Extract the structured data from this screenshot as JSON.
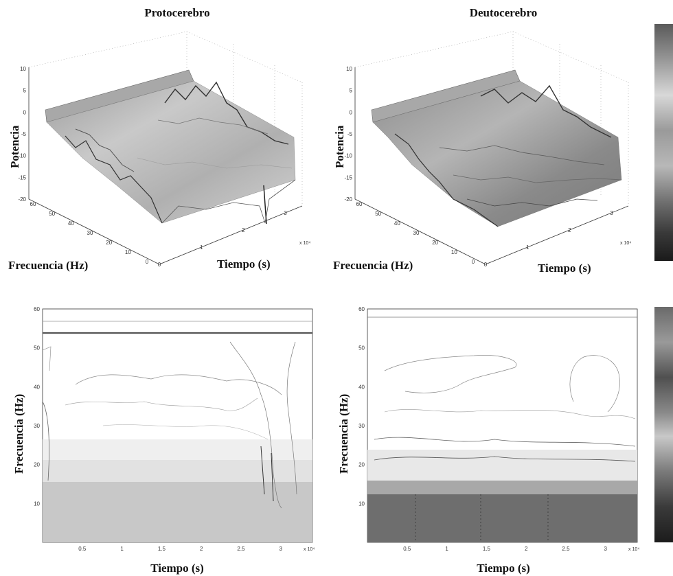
{
  "figure": {
    "panels": [
      {
        "id": "proto-3d",
        "title": "Protocerebro",
        "type": "surface",
        "xlabel": "Tiempo (s)",
        "ylabel": "Frecuencia (Hz)",
        "zlabel": "Potencia",
        "z_ticks": [
          "10",
          "5",
          "0",
          "-5",
          "-10",
          "-15",
          "-20"
        ],
        "y_ticks": [
          "60",
          "50",
          "40",
          "30",
          "20",
          "10",
          "0"
        ],
        "x_ticks": [
          "0",
          "1",
          "2",
          "3"
        ],
        "x_scale": "x 10⁴"
      },
      {
        "id": "deuto-3d",
        "title": "Deutocerebro",
        "type": "surface",
        "xlabel": "Tiempo (s)",
        "ylabel": "Frecuencia (Hz)",
        "zlabel": "Potencia",
        "z_ticks": [
          "10",
          "5",
          "0",
          "-5",
          "-10",
          "-15",
          "-20"
        ],
        "y_ticks": [
          "60",
          "50",
          "40",
          "30",
          "20",
          "10",
          "0"
        ],
        "x_ticks": [
          "0",
          "1",
          "2",
          "3"
        ],
        "x_scale": "x 10⁴"
      },
      {
        "id": "proto-contour",
        "type": "contour",
        "xlabel": "Tiempo (s)",
        "ylabel": "Frecuencia (Hz)",
        "x_ticks": [
          "0.5",
          "1",
          "1.5",
          "2",
          "2.5",
          "3"
        ],
        "y_ticks": [
          "60",
          "50",
          "40",
          "30",
          "20",
          "10"
        ],
        "x_scale": "x 10⁴"
      },
      {
        "id": "deuto-contour",
        "type": "contour",
        "xlabel": "Tiempo (s)",
        "ylabel": "Frecuencia (Hz)",
        "x_ticks": [
          "0.5",
          "1",
          "1.5",
          "2",
          "2.5",
          "3"
        ],
        "y_ticks": [
          "60",
          "50",
          "40",
          "30",
          "20",
          "10"
        ],
        "x_scale": "x 10⁴"
      }
    ]
  },
  "chart_data": [
    {
      "type": "heatmap",
      "title": "Protocerebro",
      "style": "3d-surface",
      "xlabel": "Tiempo (s)",
      "ylabel": "Frecuencia (Hz)",
      "zlabel": "Potencia",
      "x_multiplier": 10000,
      "xlim": [
        0,
        3.4
      ],
      "ylim": [
        0,
        60
      ],
      "zlim": [
        -20,
        10
      ],
      "surface_profile": {
        "frequency": [
          55,
          50,
          40,
          30,
          20,
          10,
          2
        ],
        "potencia": [
          6,
          0,
          -4,
          -7,
          -10,
          -12,
          -14
        ]
      },
      "colormap": "gray",
      "grid": true
    },
    {
      "type": "heatmap",
      "title": "Deutocerebro",
      "style": "3d-surface",
      "xlabel": "Tiempo (s)",
      "ylabel": "Frecuencia (Hz)",
      "zlabel": "Potencia",
      "x_multiplier": 10000,
      "xlim": [
        0,
        3.4
      ],
      "ylim": [
        0,
        60
      ],
      "zlim": [
        -20,
        10
      ],
      "surface_profile": {
        "frequency": [
          55,
          50,
          40,
          30,
          20,
          10,
          2
        ],
        "potencia": [
          6,
          1,
          -3,
          -6,
          -9,
          -13,
          -15
        ]
      },
      "colormap": "gray",
      "grid": true
    },
    {
      "type": "heatmap",
      "style": "contour",
      "xlabel": "Tiempo (s)",
      "ylabel": "Frecuencia (Hz)",
      "x_multiplier": 10000,
      "xlim": [
        0,
        3.4
      ],
      "ylim": [
        0,
        60
      ],
      "horizontal_lines": [
        57,
        54
      ],
      "dense_band_hz": [
        0,
        15
      ],
      "colormap": "gray"
    },
    {
      "type": "heatmap",
      "style": "contour",
      "xlabel": "Tiempo (s)",
      "ylabel": "Frecuencia (Hz)",
      "x_multiplier": 10000,
      "xlim": [
        0,
        3.4
      ],
      "ylim": [
        0,
        60
      ],
      "horizontal_lines": [
        57
      ],
      "dense_band_hz": [
        0,
        12
      ],
      "colormap": "gray"
    }
  ]
}
